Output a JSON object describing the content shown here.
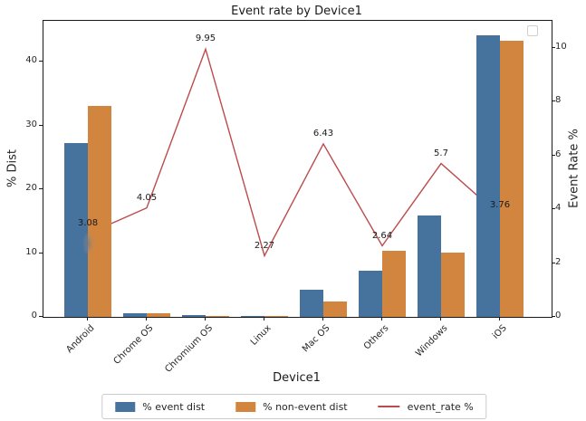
{
  "title": "Event rate by Device1",
  "chart_data": {
    "type": "bar",
    "title": "Event rate by Device1",
    "xlabel": "Device1",
    "ylabel_left": "% Dist",
    "ylabel_right": "Event Rate %",
    "categories": [
      "Android",
      "Chrome OS",
      "Chromium OS",
      "Linux",
      "Mac OS",
      "Others",
      "Windows",
      "iOS"
    ],
    "series": [
      {
        "name": "% event dist",
        "kind": "bar",
        "axis": "left",
        "color": "#46739e",
        "values": [
          27.3,
          0.6,
          0.3,
          0.2,
          4.3,
          7.2,
          15.9,
          44.2
        ]
      },
      {
        "name": "% non-event dist",
        "kind": "bar",
        "axis": "left",
        "color": "#d2853e",
        "values": [
          33.0,
          0.5,
          0.2,
          0.15,
          2.4,
          10.4,
          10.1,
          43.3
        ]
      },
      {
        "name": "event_rate %",
        "kind": "line",
        "axis": "right",
        "color": "#bc4b4d",
        "values": [
          3.08,
          4.05,
          9.95,
          2.27,
          6.43,
          2.64,
          5.7,
          3.76
        ],
        "point_labels": [
          "3.08",
          "4.05",
          "9.95",
          "2.27",
          "6.43",
          "2.64",
          "5.7",
          "3.76"
        ]
      }
    ],
    "axes": {
      "left": {
        "ticks": [
          0,
          10,
          20,
          30,
          40
        ],
        "max": 46.4,
        "label_color": "#4d7ba8"
      },
      "right": {
        "ticks": [
          0,
          2,
          4,
          6,
          8,
          10
        ],
        "max": 11.0,
        "label_color": "#bc4b4d"
      }
    },
    "grid": false,
    "legend_position": "bottom-center",
    "empty_inner_legend": true
  }
}
